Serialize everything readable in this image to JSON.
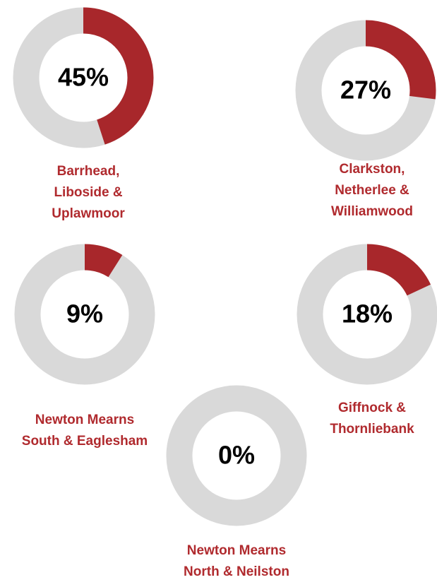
{
  "chart_data": [
    {
      "type": "donut",
      "title": [
        "Barrhead,",
        "Liboside &",
        "Uplawmoor"
      ],
      "values": [
        45
      ],
      "value_labels": [
        "45%"
      ],
      "ylim": [
        0,
        100
      ],
      "color": "#a8272b",
      "track_color": "#d9d9d9"
    },
    {
      "type": "donut",
      "title": [
        "Clarkston,",
        "Netherlee &",
        "Williamwood"
      ],
      "values": [
        27
      ],
      "value_labels": [
        "27%"
      ],
      "ylim": [
        0,
        100
      ],
      "color": "#a8272b",
      "track_color": "#d9d9d9"
    },
    {
      "type": "donut",
      "title": [
        "Newton Mearns",
        "South & Eaglesham"
      ],
      "values": [
        9
      ],
      "value_labels": [
        "9%"
      ],
      "ylim": [
        0,
        100
      ],
      "color": "#a8272b",
      "track_color": "#d9d9d9"
    },
    {
      "type": "donut",
      "title": [
        "Giffnock &",
        "Thornliebank"
      ],
      "values": [
        18
      ],
      "value_labels": [
        "18%"
      ],
      "ylim": [
        0,
        100
      ],
      "color": "#a8272b",
      "track_color": "#d9d9d9"
    },
    {
      "type": "donut",
      "title": [
        "Newton Mearns",
        "North & Neilston"
      ],
      "values": [
        0
      ],
      "value_labels": [
        "0%"
      ],
      "ylim": [
        0,
        100
      ],
      "color": "#a8272b",
      "track_color": "#d9d9d9"
    }
  ]
}
